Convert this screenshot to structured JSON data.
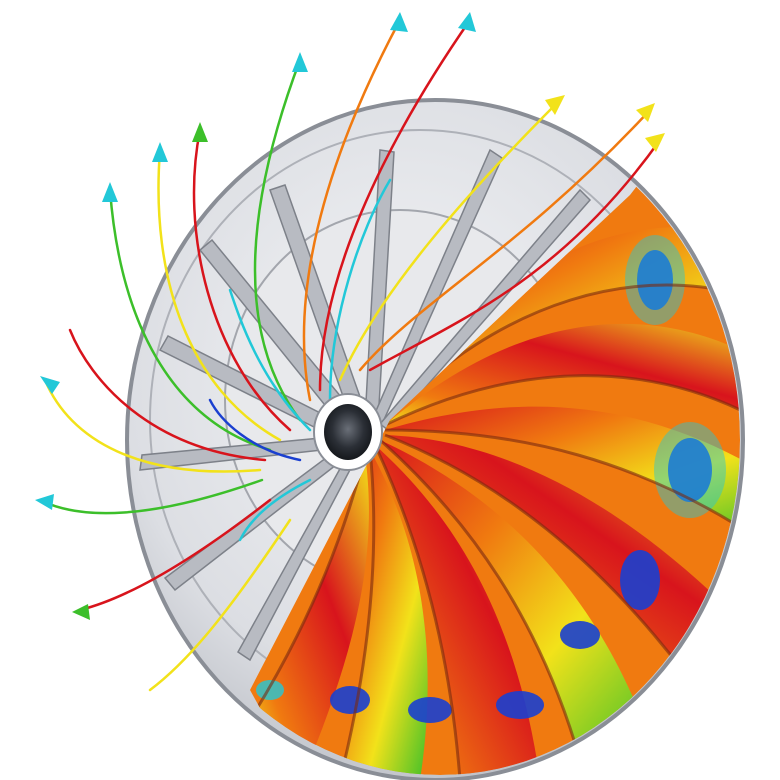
{
  "scene": {
    "subject": "impeller-cfd-render",
    "blade_count": 12,
    "colors": {
      "background": "#ffffff",
      "housing": "#cfd2d8",
      "housing_edge": "#8a8e96",
      "hub": "#2b2f36",
      "hub_ring": "#ffffff",
      "contour_red": "#d8141c",
      "contour_orange": "#f07a10",
      "contour_yellow": "#f2e21a",
      "contour_green": "#3cbf2a",
      "contour_cyan": "#22c8d8",
      "contour_blue": "#1a3fd0"
    }
  }
}
